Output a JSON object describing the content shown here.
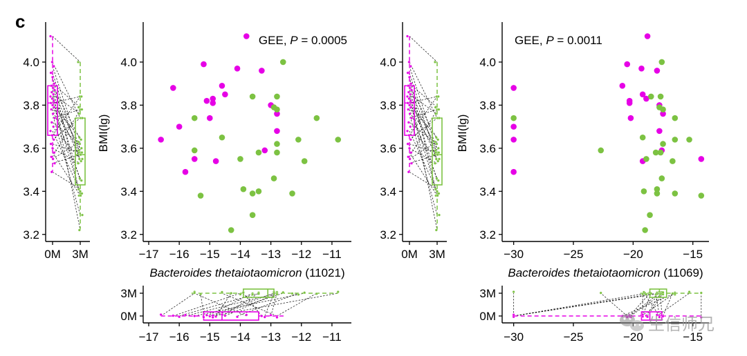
{
  "panel_letter": "c",
  "watermark": "生信师兄",
  "colors": {
    "m0": "#e600e6",
    "m3": "#7cc242",
    "axis": "#000000",
    "link": "#000000"
  },
  "chart_data": [
    {
      "id": "box-bmi-left",
      "type": "box",
      "categories": [
        "0M",
        "3M"
      ],
      "ylim": [
        3.18,
        4.16
      ],
      "yticks": [
        3.2,
        3.4,
        3.6,
        3.8,
        4.0
      ],
      "yticklabels": [
        "3.2",
        "3.4",
        "3.6",
        "3.8",
        "4.0"
      ],
      "series": [
        {
          "values": [
            4.12,
            4.0,
            3.98,
            3.95,
            3.93,
            3.9,
            3.89,
            3.88,
            3.87,
            3.86,
            3.85,
            3.84,
            3.83,
            3.82,
            3.81,
            3.8,
            3.79,
            3.78,
            3.76,
            3.74,
            3.72,
            3.7,
            3.68,
            3.66,
            3.64,
            3.62,
            3.6,
            3.58,
            3.56,
            3.55,
            3.53,
            3.49
          ],
          "box": {
            "q1": 3.66,
            "median": 3.81,
            "q3": 3.89,
            "wlo": 3.49,
            "whi": 4.12
          }
        },
        {
          "values": [
            4.0,
            3.84,
            3.84,
            3.79,
            3.78,
            3.78,
            3.76,
            3.74,
            3.74,
            3.65,
            3.64,
            3.63,
            3.62,
            3.6,
            3.59,
            3.58,
            3.58,
            3.58,
            3.57,
            3.55,
            3.55,
            3.54,
            3.53,
            3.46,
            3.45,
            3.41,
            3.4,
            3.39,
            3.38,
            3.38,
            3.29,
            3.22
          ],
          "box": {
            "q1": 3.43,
            "median": 3.57,
            "q3": 3.74,
            "wlo": 3.22,
            "whi": 4.0
          }
        }
      ]
    },
    {
      "id": "scatter-11021",
      "type": "scatter",
      "xlabel_italic": "Bacteroides thetaiotaomicron",
      "xlabel_suffix": " (11021)",
      "ylabel": "BMI(lg)",
      "annotation_prefix": "GEE, ",
      "annotation_italic": "P",
      "annotation_suffix": " = 0.0005",
      "xlim": [
        -17.0,
        -10.5
      ],
      "ylim": [
        3.18,
        4.16
      ],
      "xticks": [
        -17,
        -16,
        -15,
        -14,
        -13,
        -12,
        -11
      ],
      "xticklabels": [
        "−17",
        "−16",
        "−15",
        "−14",
        "−13",
        "−12",
        "−11"
      ],
      "yticks": [
        3.2,
        3.4,
        3.6,
        3.8,
        4.0
      ],
      "yticklabels": [
        "3.2",
        "3.4",
        "3.6",
        "3.8",
        "4.0"
      ],
      "series": [
        {
          "x": [
            -13.8,
            -15.2,
            -14.1,
            -13.3,
            -16.2,
            -14.6,
            -14.5,
            -14.9,
            -15.1,
            -14.9,
            -13.0,
            -15.0,
            -12.8,
            -16.0,
            -16.6,
            -12.8,
            -13.2,
            -15.5,
            -14.8,
            -15.8
          ],
          "y": [
            4.12,
            3.99,
            3.97,
            3.96,
            3.88,
            3.89,
            3.85,
            3.83,
            3.82,
            3.81,
            3.8,
            3.74,
            3.76,
            3.7,
            3.64,
            3.68,
            3.59,
            3.55,
            3.54,
            3.49
          ]
        },
        {
          "x": [
            -12.6,
            -13.6,
            -12.8,
            -12.9,
            -12.8,
            -11.5,
            -15.5,
            -14.6,
            -12.1,
            -10.8,
            -12.8,
            -15.5,
            -13.4,
            -12.8,
            -14.0,
            -11.9,
            -12.9,
            -13.9,
            -12.3,
            -13.4,
            -15.3,
            -13.6,
            -13.6,
            -14.3
          ],
          "y": [
            4.0,
            3.84,
            3.84,
            3.79,
            3.78,
            3.74,
            3.74,
            3.65,
            3.64,
            3.64,
            3.62,
            3.59,
            3.58,
            3.58,
            3.55,
            3.54,
            3.46,
            3.41,
            3.39,
            3.4,
            3.38,
            3.39,
            3.29,
            3.22
          ]
        }
      ]
    },
    {
      "id": "box-bmi-right",
      "type": "box",
      "categories": [
        "0M",
        "3M"
      ],
      "ylim": [
        3.18,
        4.16
      ],
      "yticks": [
        3.2,
        3.4,
        3.6,
        3.8,
        4.0
      ],
      "yticklabels": [
        "3.2",
        "3.4",
        "3.6",
        "3.8",
        "4.0"
      ],
      "series": [
        {
          "values": [
            4.12,
            4.0,
            3.98,
            3.95,
            3.93,
            3.9,
            3.89,
            3.88,
            3.87,
            3.86,
            3.85,
            3.84,
            3.83,
            3.82,
            3.81,
            3.8,
            3.79,
            3.78,
            3.76,
            3.74,
            3.72,
            3.7,
            3.68,
            3.66,
            3.64,
            3.62,
            3.6,
            3.58,
            3.56,
            3.55,
            3.53,
            3.49
          ],
          "box": {
            "q1": 3.66,
            "median": 3.81,
            "q3": 3.89,
            "wlo": 3.49,
            "whi": 4.12
          }
        },
        {
          "values": [
            4.0,
            3.84,
            3.84,
            3.79,
            3.78,
            3.78,
            3.76,
            3.74,
            3.74,
            3.65,
            3.64,
            3.63,
            3.62,
            3.6,
            3.59,
            3.58,
            3.58,
            3.58,
            3.57,
            3.55,
            3.55,
            3.54,
            3.53,
            3.46,
            3.45,
            3.41,
            3.4,
            3.39,
            3.38,
            3.38,
            3.29,
            3.22
          ],
          "box": {
            "q1": 3.43,
            "median": 3.57,
            "q3": 3.74,
            "wlo": 3.22,
            "whi": 4.0
          }
        }
      ]
    },
    {
      "id": "scatter-11069",
      "type": "scatter",
      "xlabel_italic": "Bacteroides thetaiotaomicron",
      "xlabel_suffix": " (11069)",
      "ylabel": "BMI(lg)",
      "annotation_prefix": "GEE, ",
      "annotation_italic": "P",
      "annotation_suffix": " = 0.0011",
      "xlim": [
        -30.5,
        -14.0
      ],
      "ylim": [
        3.18,
        4.16
      ],
      "xticks": [
        -30,
        -25,
        -20,
        -15
      ],
      "xticklabels": [
        "−30",
        "−25",
        "−20",
        "−15"
      ],
      "yticks": [
        3.2,
        3.4,
        3.6,
        3.8,
        4.0
      ],
      "yticklabels": [
        "3.2",
        "3.4",
        "3.6",
        "3.8",
        "4.0"
      ],
      "series": [
        {
          "x": [
            -18.8,
            -20.5,
            -19.3,
            -18.0,
            -30.0,
            -20.9,
            -19.2,
            -18.9,
            -20.3,
            -20.3,
            -17.8,
            -20.2,
            -17.5,
            -30.0,
            -30.0,
            -17.8,
            -17.6,
            -14.3,
            -19.2,
            -30.0
          ],
          "y": [
            4.12,
            3.99,
            3.97,
            3.96,
            3.88,
            3.89,
            3.85,
            3.83,
            3.82,
            3.81,
            3.8,
            3.74,
            3.76,
            3.7,
            3.64,
            3.68,
            3.59,
            3.55,
            3.54,
            3.49
          ]
        },
        {
          "x": [
            -17.6,
            -18.5,
            -17.7,
            -17.8,
            -17.5,
            -16.5,
            -30.0,
            -19.2,
            -16.5,
            -15.3,
            -17.5,
            -22.7,
            -18.1,
            -17.7,
            -18.9,
            -16.7,
            -17.6,
            -18.0,
            -16.5,
            -19.1,
            -14.3,
            -18.0,
            -18.6,
            -19.0
          ],
          "y": [
            4.0,
            3.84,
            3.84,
            3.79,
            3.78,
            3.74,
            3.74,
            3.65,
            3.64,
            3.64,
            3.62,
            3.59,
            3.58,
            3.58,
            3.55,
            3.54,
            3.46,
            3.41,
            3.39,
            3.4,
            3.38,
            3.39,
            3.29,
            3.22
          ]
        }
      ]
    },
    {
      "id": "hbox-11021",
      "type": "box",
      "categories": [
        "0M",
        "3M"
      ],
      "xlim": [
        -17.0,
        -10.5
      ],
      "xticks": [
        -17,
        -16,
        -15,
        -14,
        -13,
        -12,
        -11
      ],
      "xticklabels": [
        "−17",
        "−16",
        "−15",
        "−14",
        "−13",
        "−12",
        "−11"
      ],
      "series": [
        {
          "values": [
            -16.6,
            -16.2,
            -16.0,
            -15.8,
            -15.5,
            -15.2,
            -15.1,
            -15.0,
            -14.9,
            -14.9,
            -14.8,
            -14.6,
            -14.5,
            -14.1,
            -13.8,
            -13.3,
            -13.2,
            -13.0,
            -12.8,
            -12.8
          ],
          "box": {
            "q1": -15.2,
            "median": -14.6,
            "q3": -13.4,
            "wlo": -16.6,
            "whi": -12.5
          }
        },
        {
          "values": [
            -15.5,
            -15.5,
            -15.3,
            -14.6,
            -14.3,
            -14.0,
            -13.9,
            -13.6,
            -13.6,
            -13.4,
            -13.4,
            -12.9,
            -12.9,
            -12.8,
            -12.8,
            -12.8,
            -12.8,
            -12.6,
            -12.3,
            -12.1,
            -11.9,
            -11.5,
            -10.8
          ],
          "box": {
            "q1": -13.9,
            "median": -13.1,
            "q3": -12.9,
            "wlo": -15.6,
            "whi": -10.8
          }
        }
      ]
    },
    {
      "id": "hbox-11069",
      "type": "box",
      "categories": [
        "0M",
        "3M"
      ],
      "xlim": [
        -30.5,
        -14.0
      ],
      "xticks": [
        -30,
        -25,
        -20,
        -15
      ],
      "xticklabels": [
        "−30",
        "−25",
        "−20",
        "−15"
      ],
      "series": [
        {
          "values": [
            -30.0,
            -30.0,
            -30.0,
            -30.0,
            -20.9,
            -20.5,
            -20.3,
            -20.3,
            -20.2,
            -19.3,
            -19.2,
            -19.2,
            -18.9,
            -18.8,
            -18.0,
            -17.8,
            -17.8,
            -17.6,
            -17.5,
            -14.3
          ],
          "box": {
            "q1": -19.3,
            "median": -18.6,
            "q3": -17.6,
            "wlo": -30.0,
            "whi": -14.3
          }
        },
        {
          "values": [
            -30.0,
            -22.7,
            -19.2,
            -19.1,
            -19.0,
            -18.9,
            -18.6,
            -18.5,
            -18.1,
            -18.0,
            -18.0,
            -17.8,
            -17.7,
            -17.7,
            -17.6,
            -17.6,
            -17.5,
            -17.5,
            -16.7,
            -16.5,
            -16.5,
            -16.5,
            -15.3,
            -14.3
          ],
          "box": {
            "q1": -18.6,
            "median": -17.8,
            "q3": -17.2,
            "wlo": -19.4,
            "whi": -14.3
          }
        }
      ]
    }
  ]
}
